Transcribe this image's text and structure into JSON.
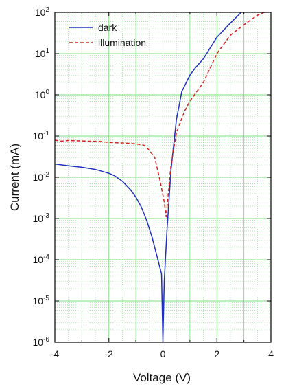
{
  "chart_data": {
    "type": "line",
    "xlabel": "Voltage (V)",
    "ylabel": "Current (mA)",
    "xlim": [
      -4,
      4
    ],
    "ylim_log10": [
      -6,
      2
    ],
    "y_scale": "log",
    "x_ticks": [
      "-4",
      "-2",
      "0",
      "2",
      "4"
    ],
    "y_ticks": [
      {
        "base": "10",
        "exp": "-6"
      },
      {
        "base": "10",
        "exp": "-5"
      },
      {
        "base": "10",
        "exp": "-4"
      },
      {
        "base": "10",
        "exp": "-3"
      },
      {
        "base": "10",
        "exp": "-2"
      },
      {
        "base": "10",
        "exp": "-1"
      },
      {
        "base": "10",
        "exp": "0"
      },
      {
        "base": "10",
        "exp": "1"
      },
      {
        "base": "10",
        "exp": "2"
      }
    ],
    "grid": true,
    "legend_position": "top-left",
    "colors": {
      "grid": "#7fdc7f",
      "axes": "#000000"
    },
    "series": [
      {
        "name": "dark",
        "color": "#1f2fbf",
        "style": "solid",
        "points": [
          [
            -4.0,
            0.021
          ],
          [
            -3.5,
            0.019
          ],
          [
            -3.0,
            0.0175
          ],
          [
            -2.5,
            0.0155
          ],
          [
            -2.0,
            0.0125
          ],
          [
            -1.8,
            0.011
          ],
          [
            -1.5,
            0.008
          ],
          [
            -1.2,
            0.005
          ],
          [
            -1.0,
            0.0033
          ],
          [
            -0.8,
            0.0019
          ],
          [
            -0.6,
            0.0009
          ],
          [
            -0.4,
            0.00035
          ],
          [
            -0.2,
            0.00011
          ],
          [
            -0.05,
            4.5e-05
          ],
          [
            0.0,
            1e-06
          ],
          [
            0.05,
            3e-05
          ],
          [
            0.15,
            0.0005
          ],
          [
            0.3,
            0.015
          ],
          [
            0.5,
            0.25
          ],
          [
            0.7,
            1.2
          ],
          [
            1.0,
            3.0
          ],
          [
            1.2,
            4.5
          ],
          [
            1.5,
            7.5
          ],
          [
            2.0,
            25
          ],
          [
            2.5,
            55
          ],
          [
            2.9,
            100
          ]
        ]
      },
      {
        "name": "illumination",
        "color": "#d62020",
        "style": "dashed",
        "points": [
          [
            -4.0,
            0.08
          ],
          [
            -3.8,
            0.075
          ],
          [
            -3.5,
            0.078
          ],
          [
            -3.0,
            0.076
          ],
          [
            -2.7,
            0.075
          ],
          [
            -2.3,
            0.074
          ],
          [
            -2.0,
            0.07
          ],
          [
            -1.5,
            0.068
          ],
          [
            -1.0,
            0.065
          ],
          [
            -0.7,
            0.06
          ],
          [
            -0.5,
            0.045
          ],
          [
            -0.3,
            0.03
          ],
          [
            -0.1,
            0.008
          ],
          [
            0.05,
            0.0025
          ],
          [
            0.12,
            0.0011
          ],
          [
            0.2,
            0.004
          ],
          [
            0.3,
            0.02
          ],
          [
            0.5,
            0.12
          ],
          [
            0.8,
            0.4
          ],
          [
            1.0,
            0.7
          ],
          [
            1.5,
            2.0
          ],
          [
            2.0,
            10
          ],
          [
            2.5,
            28
          ],
          [
            3.0,
            50
          ],
          [
            3.5,
            85
          ],
          [
            3.75,
            100
          ]
        ]
      }
    ]
  }
}
